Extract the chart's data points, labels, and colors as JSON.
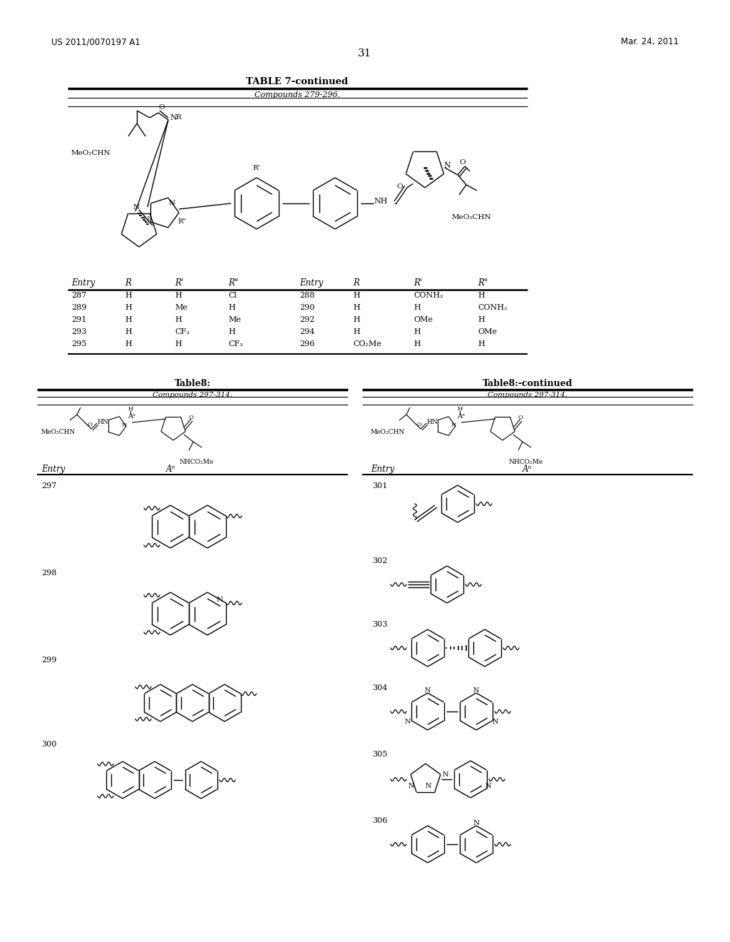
{
  "page_number": "31",
  "patent_left": "US 2011/0070197 A1",
  "patent_right": "Mar. 24, 2011",
  "table7_title": "TABLE 7-continued",
  "table7_subtitle": "Compounds 279-296.",
  "table7_rows": [
    [
      "287",
      "H",
      "H",
      "Cl",
      "288",
      "H",
      "CONH₂",
      "H"
    ],
    [
      "289",
      "H",
      "Me",
      "H",
      "290",
      "H",
      "H",
      "CONH₂"
    ],
    [
      "291",
      "H",
      "H",
      "Me",
      "292",
      "H",
      "OMe",
      "H"
    ],
    [
      "293",
      "H",
      "CF₃",
      "H",
      "294",
      "H",
      "H",
      "OMe"
    ],
    [
      "295",
      "H",
      "H",
      "CF₃",
      "296",
      "CO₂Me",
      "H",
      "H"
    ]
  ],
  "table8_left_title": "Table8:",
  "table8_right_title": "Table8:-continued",
  "table8_subtitle": "Compounds 297-314.",
  "bg_color": "#ffffff",
  "text_color": "#000000"
}
